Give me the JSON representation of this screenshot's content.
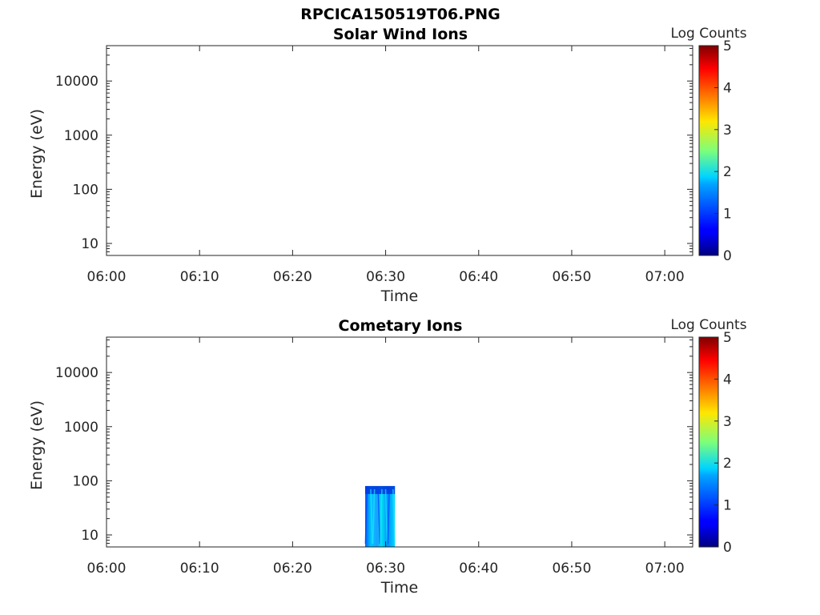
{
  "figure_title": "RPCICA150519T06.PNG",
  "chart_data": [
    {
      "type": "heatmap",
      "title": "Solar Wind Ions",
      "xlabel": "Time",
      "ylabel": "Energy (eV)",
      "x_tick_labels": [
        "06:00",
        "06:10",
        "06:20",
        "06:30",
        "06:40",
        "06:50",
        "07:00"
      ],
      "y_tick_labels": [
        "10",
        "100",
        "1000",
        "10000"
      ],
      "y_scale": "log",
      "xlim": [
        "06:00",
        "07:03"
      ],
      "ylim": [
        6,
        45000
      ],
      "colorbar": {
        "label": "Log Counts",
        "ticks": [
          "0",
          "1",
          "2",
          "3",
          "4",
          "5"
        ],
        "range": [
          0,
          5
        ],
        "colormap": "jet"
      },
      "blocks": []
    },
    {
      "type": "heatmap",
      "title": "Cometary Ions",
      "xlabel": "Time",
      "ylabel": "Energy (eV)",
      "x_tick_labels": [
        "06:00",
        "06:10",
        "06:20",
        "06:30",
        "06:40",
        "06:50",
        "07:00"
      ],
      "y_tick_labels": [
        "10",
        "100",
        "1000",
        "10000"
      ],
      "y_scale": "log",
      "xlim": [
        "06:00",
        "07:03"
      ],
      "ylim": [
        6,
        45000
      ],
      "colorbar": {
        "label": "Log Counts",
        "ticks": [
          "0",
          "1",
          "2",
          "3",
          "4",
          "5"
        ],
        "range": [
          0,
          5
        ],
        "colormap": "jet"
      },
      "blocks": [
        {
          "t_start": "06:27.8",
          "t_end": "06:31.0",
          "e_min": 6,
          "e_max": 80,
          "log_counts_min": 0.8,
          "log_counts_max": 2.2
        }
      ]
    }
  ]
}
